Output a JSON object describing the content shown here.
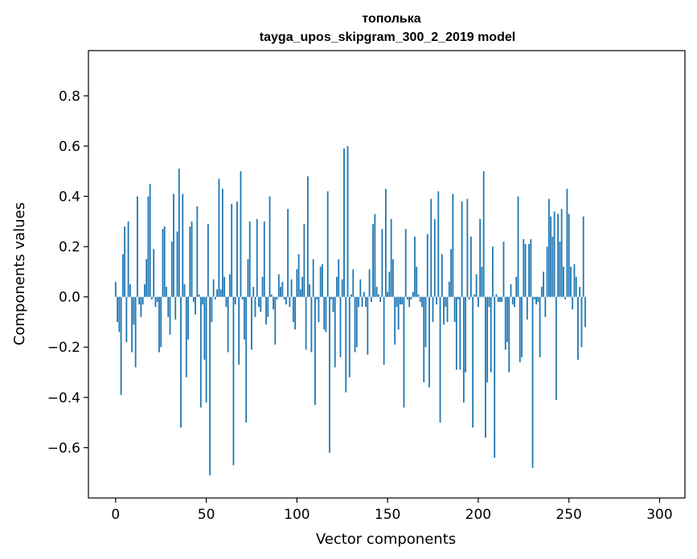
{
  "chart_data": {
    "type": "bar",
    "title_line1": "тополька",
    "title_line2": "tayga_upos_skipgram_300_2_2019 model",
    "xlabel": "Vector components",
    "ylabel": "Components values",
    "xlim": [
      -15,
      314
    ],
    "ylim": [
      -0.8,
      0.98
    ],
    "xticks": [
      0,
      50,
      100,
      150,
      200,
      250,
      300
    ],
    "xtick_labels": [
      "0",
      "50",
      "100",
      "150",
      "200",
      "250",
      "300"
    ],
    "yticks": [
      -0.6,
      -0.4,
      -0.2,
      0.0,
      0.2,
      0.4,
      0.6,
      0.8
    ],
    "ytick_labels": [
      "−0.6",
      "−0.4",
      "−0.2",
      "0.0",
      "0.2",
      "0.4",
      "0.6",
      "0.8"
    ],
    "bar_color": "#1f77b4",
    "values": [
      0.06,
      -0.1,
      -0.14,
      -0.39,
      0.17,
      0.28,
      -0.18,
      0.3,
      0.05,
      -0.22,
      -0.11,
      -0.28,
      0.4,
      -0.03,
      -0.08,
      -0.03,
      0.05,
      0.15,
      0.4,
      0.45,
      -0.01,
      0.19,
      -0.04,
      -0.02,
      -0.22,
      -0.2,
      0.27,
      0.28,
      0.04,
      -0.08,
      -0.15,
      0.22,
      0.41,
      -0.09,
      0.26,
      0.51,
      -0.52,
      0.41,
      0.05,
      -0.32,
      -0.17,
      0.28,
      0.3,
      -0.02,
      -0.07,
      0.36,
      0.01,
      -0.44,
      -0.03,
      -0.25,
      -0.42,
      0.29,
      -0.71,
      -0.1,
      0.07,
      -0.01,
      0.03,
      0.47,
      0.03,
      0.43,
      0.08,
      -0.04,
      -0.22,
      0.09,
      0.37,
      -0.67,
      -0.03,
      0.38,
      -0.27,
      0.5,
      -0.01,
      -0.17,
      -0.5,
      0.15,
      0.3,
      -0.21,
      0.04,
      -0.08,
      0.31,
      -0.04,
      -0.06,
      0.08,
      0.3,
      -0.11,
      -0.08,
      0.4,
      0.01,
      -0.05,
      -0.19,
      -0.01,
      0.09,
      0.04,
      0.06,
      -0.01,
      -0.03,
      0.35,
      -0.04,
      0.07,
      -0.1,
      -0.13,
      0.11,
      0.17,
      0.03,
      0.08,
      0.29,
      -0.21,
      0.48,
      0.05,
      -0.22,
      0.15,
      -0.43,
      -0.01,
      -0.1,
      0.12,
      0.13,
      -0.13,
      -0.14,
      0.42,
      -0.62,
      -0.01,
      -0.06,
      -0.28,
      0.08,
      0.15,
      -0.24,
      0.07,
      0.59,
      -0.38,
      0.6,
      -0.32,
      0.01,
      0.11,
      -0.22,
      -0.2,
      -0.04,
      0.07,
      -0.04,
      0.02,
      -0.04,
      -0.23,
      0.11,
      -0.02,
      0.29,
      0.33,
      0.04,
      0.01,
      -0.02,
      0.27,
      -0.27,
      0.43,
      0.02,
      0.1,
      0.31,
      0.15,
      -0.19,
      -0.04,
      -0.13,
      -0.03,
      -0.03,
      -0.44,
      0.27,
      -0.01,
      -0.04,
      -0.01,
      0.02,
      0.24,
      0.12,
      0.01,
      -0.02,
      -0.04,
      -0.34,
      -0.2,
      0.25,
      -0.36,
      0.39,
      -0.1,
      0.31,
      -0.03,
      0.42,
      -0.5,
      0.17,
      -0.11,
      -0.04,
      -0.1,
      0.06,
      0.19,
      0.41,
      -0.1,
      -0.29,
      -0.01,
      -0.29,
      0.38,
      -0.42,
      -0.3,
      0.39,
      -0.01,
      0.24,
      -0.52,
      0.01,
      0.09,
      -0.04,
      0.31,
      0.12,
      0.5,
      -0.56,
      -0.34,
      -0.04,
      -0.3,
      0.2,
      -0.64,
      0.01,
      -0.02,
      -0.02,
      -0.02,
      0.22,
      -0.21,
      -0.18,
      -0.3,
      0.05,
      -0.03,
      -0.04,
      0.08,
      0.4,
      -0.26,
      -0.24,
      0.23,
      0.21,
      -0.09,
      0.21,
      0.23,
      -0.68,
      -0.01,
      -0.03,
      -0.02,
      -0.24,
      0.04,
      0.1,
      -0.08,
      0.2,
      0.39,
      0.32,
      0.24,
      0.34,
      -0.41,
      0.33,
      0.22,
      0.35,
      0.12,
      -0.01,
      0.43,
      0.33,
      0.12,
      -0.05,
      0.13,
      0.08,
      -0.25,
      0.04,
      -0.2,
      0.32,
      -0.12
    ]
  }
}
